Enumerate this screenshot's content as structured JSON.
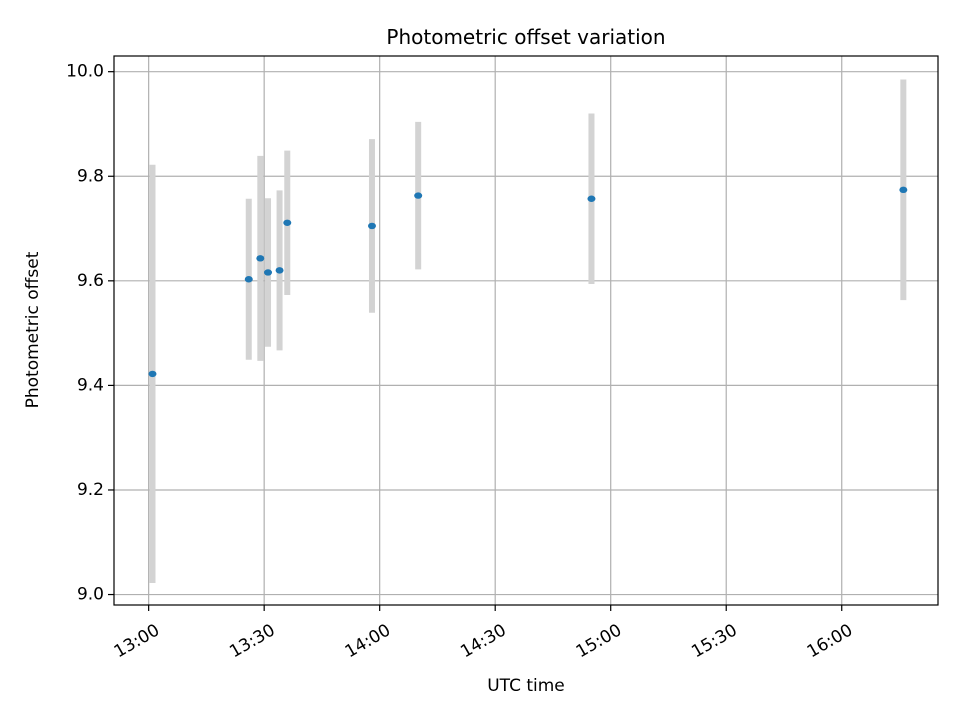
{
  "chart_data": {
    "type": "scatter",
    "title": "Photometric offset variation",
    "xlabel": "UTC time",
    "ylabel": "Photometric offset",
    "grid": true,
    "x_axis": {
      "kind": "time",
      "range": [
        "12:51",
        "16:25"
      ],
      "ticks": [
        "13:00",
        "13:30",
        "14:00",
        "14:30",
        "15:00",
        "15:30",
        "16:00"
      ]
    },
    "y_axis": {
      "range": [
        8.98,
        10.03
      ],
      "ticks": [
        9.0,
        9.2,
        9.4,
        9.6,
        9.8,
        10.0
      ],
      "tick_labels": [
        "9.0",
        "9.2",
        "9.4",
        "9.6",
        "9.8",
        "10.0"
      ]
    },
    "colors": {
      "points": "#1f77b4",
      "errorbars": "#d3d3d3",
      "grid": "#b0b0b0"
    },
    "points": [
      {
        "time": "13:01",
        "y": 9.422,
        "ylow": 9.022,
        "yhigh": 9.822
      },
      {
        "time": "13:26",
        "y": 9.603,
        "ylow": 9.449,
        "yhigh": 9.757
      },
      {
        "time": "13:29",
        "y": 9.643,
        "ylow": 9.447,
        "yhigh": 9.839
      },
      {
        "time": "13:31",
        "y": 9.616,
        "ylow": 9.474,
        "yhigh": 9.758
      },
      {
        "time": "13:34",
        "y": 9.62,
        "ylow": 9.467,
        "yhigh": 9.773
      },
      {
        "time": "13:36",
        "y": 9.711,
        "ylow": 9.573,
        "yhigh": 9.849
      },
      {
        "time": "13:58",
        "y": 9.705,
        "ylow": 9.539,
        "yhigh": 9.871
      },
      {
        "time": "14:10",
        "y": 9.763,
        "ylow": 9.622,
        "yhigh": 9.904
      },
      {
        "time": "14:55",
        "y": 9.757,
        "ylow": 9.594,
        "yhigh": 9.92
      },
      {
        "time": "16:16",
        "y": 9.774,
        "ylow": 9.563,
        "yhigh": 9.985
      }
    ]
  }
}
